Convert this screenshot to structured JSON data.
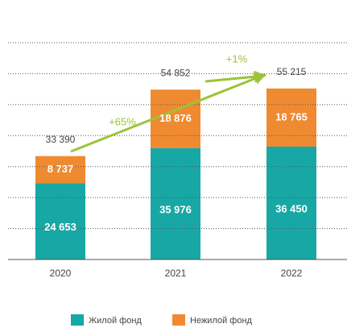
{
  "chart_data": {
    "type": "stacked_bar",
    "categories": [
      "2020",
      "2021",
      "2022"
    ],
    "series": [
      {
        "name": "Жилой фонд",
        "color": "#17a8a5",
        "values": [
          24653,
          35976,
          36450
        ],
        "value_labels": [
          "24 653",
          "35 976",
          "36 450"
        ]
      },
      {
        "name": "Нежилой фонд",
        "color": "#f08a30",
        "values": [
          8737,
          18876,
          18765
        ],
        "value_labels": [
          "8 737",
          "18 876",
          "18 765"
        ]
      }
    ],
    "totals": [
      33390,
      54852,
      55215
    ],
    "total_labels": [
      "33 390",
      "54 852",
      "55 215"
    ],
    "annotations": [
      "+65%",
      "+1%"
    ],
    "ylim": [
      0,
      70000
    ],
    "grid_lines": [
      10000,
      20000,
      30000,
      40000,
      50000,
      60000,
      70000
    ],
    "grid": true,
    "legend": "bottom"
  }
}
